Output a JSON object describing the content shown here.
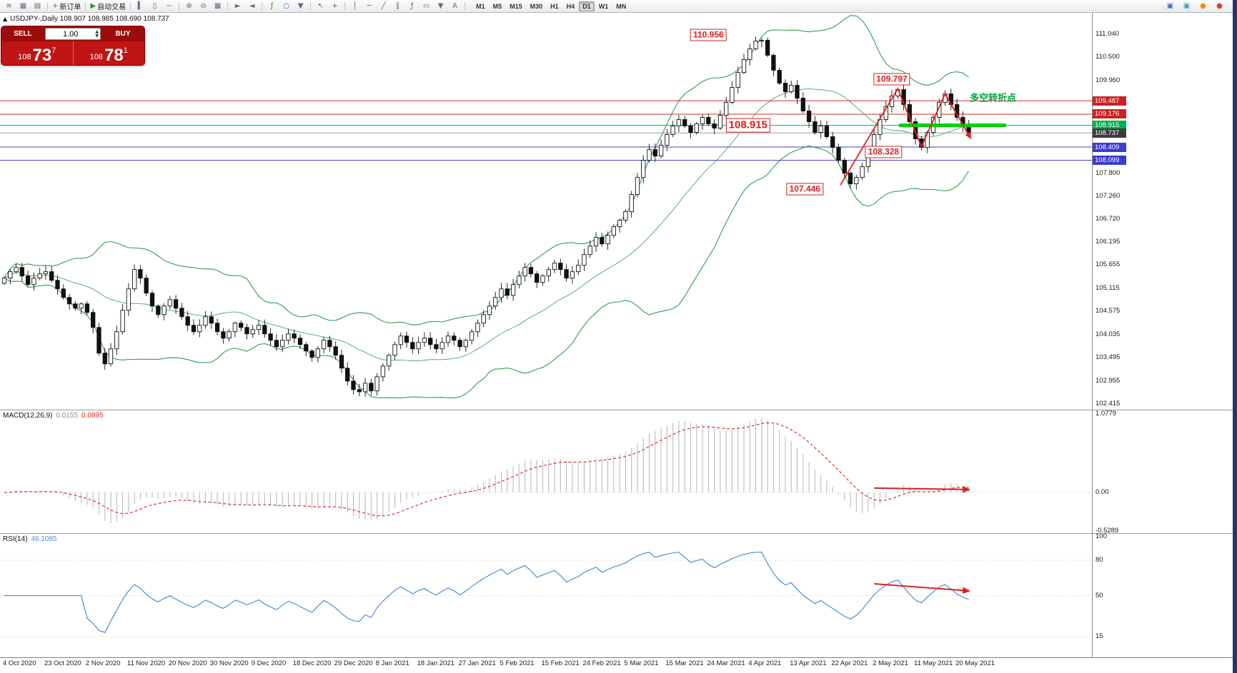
{
  "app": {
    "accent_red": "#cc2222",
    "accent_green": "#00b050",
    "accent_blue": "#3b3bd0",
    "panel_bg": "#ffffff"
  },
  "toolbar": {
    "items": [
      {
        "name": "market-watch-icon",
        "glyph": "≡"
      },
      {
        "name": "new-chart-icon",
        "glyph": "▦"
      },
      {
        "name": "profiles-icon",
        "glyph": "▤"
      },
      {
        "sep": true
      },
      {
        "name": "new-order-button",
        "glyph": "+",
        "glyph_color": "#1a9e1a",
        "label": "新订单"
      },
      {
        "sep": true
      },
      {
        "name": "autotrading-button",
        "glyph": "▶",
        "glyph_color": "#1a9e1a",
        "label": "自动交易"
      },
      {
        "sep": true
      },
      {
        "name": "bar-chart-mode-icon",
        "glyph": "▍"
      },
      {
        "name": "candlestick-mode-icon",
        "glyph": "▯"
      },
      {
        "name": "line-chart-mode-icon",
        "glyph": "~"
      },
      {
        "sep": true
      },
      {
        "name": "zoom-in-icon",
        "glyph": "⊕"
      },
      {
        "name": "zoom-out-icon",
        "glyph": "⊖"
      },
      {
        "name": "tile-windows-icon",
        "glyph": "▦"
      },
      {
        "sep": true
      },
      {
        "name": "auto-scroll-icon",
        "glyph": "►"
      },
      {
        "name": "chart-shift-icon",
        "glyph": "◄"
      },
      {
        "sep": true
      },
      {
        "name": "indicators-icon",
        "glyph": "ƒ",
        "glyph_color": "#1a9e1a"
      },
      {
        "name": "periods-icon",
        "glyph": "○"
      },
      {
        "name": "templates-icon",
        "glyph": "▼"
      },
      {
        "sep": true
      },
      {
        "name": "cursor-icon",
        "glyph": "↖"
      },
      {
        "name": "crosshair-icon",
        "glyph": "+"
      },
      {
        "sep": true
      },
      {
        "name": "vertical-line-icon",
        "glyph": "│"
      },
      {
        "name": "horizontal-line-icon",
        "glyph": "─"
      },
      {
        "name": "trendline-icon",
        "glyph": "╱"
      },
      {
        "name": "channel-icon",
        "glyph": "∥"
      },
      {
        "name": "fibonacci-icon",
        "glyph": "ƒ"
      },
      {
        "name": "shapes-icon",
        "glyph": "▭"
      },
      {
        "name": "arrows-icon",
        "glyph": "▼"
      },
      {
        "name": "text-icon",
        "glyph": "A"
      },
      {
        "sep": true
      }
    ],
    "timeframes": [
      "M1",
      "M5",
      "M15",
      "M30",
      "H1",
      "H4",
      "D1",
      "W1",
      "MN"
    ],
    "active_timeframe": "D1",
    "right_icons": [
      {
        "name": "window-icon",
        "glyph": "▣",
        "color": "#3b6fd0"
      },
      {
        "name": "chat-icon",
        "glyph": "▣",
        "color": "#35a0c8"
      },
      {
        "name": "alert-icon",
        "glyph": "●",
        "color": "#f08a20"
      },
      {
        "name": "power-icon",
        "glyph": "●",
        "color": "#d04040"
      }
    ]
  },
  "chart_header": {
    "collapse_glyph": "▲",
    "text": "USDJPY-,Daily  108.907 108.985 108.690 108.737"
  },
  "trade_panel": {
    "sell_label": "SELL",
    "buy_label": "BUY",
    "volume": "1.00",
    "sell_price_prefix": "108",
    "sell_price_big": "73",
    "sell_price_sup": "7",
    "buy_price_prefix": "108",
    "buy_price_big": "78",
    "buy_price_sup": "1"
  },
  "chart_data": {
    "type": "candlestick",
    "symbol": "USDJPY-",
    "period": "Daily",
    "ohlc_header": {
      "open": "108.907",
      "high": "108.985",
      "low": "108.690",
      "close": "108.737"
    },
    "closes": [
      105.35,
      105.5,
      105.6,
      105.4,
      105.2,
      105.35,
      105.45,
      105.5,
      105.3,
      105.1,
      104.9,
      104.75,
      104.65,
      104.75,
      104.55,
      104.2,
      103.6,
      103.35,
      103.7,
      104.1,
      104.6,
      105.1,
      105.55,
      105.35,
      105.0,
      104.7,
      104.5,
      104.7,
      104.85,
      104.65,
      104.45,
      104.25,
      104.1,
      104.25,
      104.45,
      104.3,
      104.1,
      103.95,
      104.1,
      104.3,
      104.2,
      104.05,
      104.15,
      104.25,
      104.05,
      103.9,
      103.75,
      103.9,
      104.05,
      103.95,
      103.8,
      103.65,
      103.5,
      103.7,
      103.9,
      103.75,
      103.55,
      103.25,
      102.95,
      102.75,
      102.7,
      102.9,
      102.72,
      103.05,
      103.3,
      103.55,
      103.8,
      104.0,
      103.85,
      103.7,
      103.85,
      103.95,
      103.8,
      103.7,
      103.85,
      104.0,
      103.9,
      103.75,
      103.9,
      104.1,
      104.3,
      104.5,
      104.7,
      104.9,
      105.1,
      104.95,
      105.2,
      105.4,
      105.6,
      105.45,
      105.25,
      105.4,
      105.55,
      105.7,
      105.55,
      105.35,
      105.5,
      105.65,
      105.9,
      106.1,
      106.3,
      106.15,
      106.35,
      106.55,
      106.7,
      106.9,
      107.3,
      107.7,
      108.1,
      108.35,
      108.2,
      108.45,
      108.7,
      108.9,
      109.05,
      108.9,
      108.75,
      108.95,
      109.1,
      108.95,
      108.85,
      109.15,
      109.45,
      109.8,
      110.15,
      110.45,
      110.7,
      110.88,
      110.9,
      110.55,
      110.2,
      109.9,
      109.7,
      109.85,
      109.55,
      109.25,
      109.0,
      108.75,
      108.9,
      108.65,
      108.4,
      108.1,
      107.8,
      107.55,
      107.7,
      107.95,
      108.3,
      108.7,
      109.05,
      109.35,
      109.6,
      109.75,
      109.4,
      109.0,
      108.6,
      108.4,
      108.75,
      109.1,
      109.45,
      109.65,
      109.4,
      109.1,
      108.9,
      108.74
    ],
    "overrides": {
      "128": {
        "high": 110.956
      },
      "143": {
        "low": 107.446
      },
      "151": {
        "high": 109.797
      },
      "155": {
        "low": 108.328
      },
      "159": {
        "high": 109.735
      }
    },
    "bollinger": {
      "period": 20,
      "deviation": 2,
      "color": "#2e9e50"
    },
    "hlines": [
      {
        "price": 109.487,
        "color": "#d03030",
        "tag_bg": "#cc2222"
      },
      {
        "price": 109.176,
        "color": "#d03030",
        "tag_bg": "#cc2222"
      },
      {
        "price": 108.915,
        "color": "#00b050",
        "tag_bg": "#00b050"
      },
      {
        "price": 108.737,
        "color": "#9a9a9a",
        "tag_bg": "#3c3c3c"
      },
      {
        "price": 108.409,
        "color": "#4040cc",
        "tag_bg": "#3b3bd0"
      },
      {
        "price": 108.099,
        "color": "#4040cc",
        "tag_bg": "#3b3bd0"
      }
    ],
    "thick_segment": {
      "price": 108.915,
      "i1": 151.2,
      "i2": 169.3,
      "color": "#00d000",
      "width": 5
    },
    "y_ticks": [
      111.04,
      110.5,
      109.96,
      107.8,
      107.26,
      106.72,
      106.195,
      105.655,
      105.115,
      104.575,
      104.035,
      103.495,
      102.955,
      102.415
    ],
    "x_labels": [
      "4 Oct 2020",
      "23 Oct 2020",
      "2 Nov 2020",
      "11 Nov 2020",
      "20 Nov 2020",
      "30 Nov 2020",
      "9 Dec 2020",
      "18 Dec 2020",
      "29 Dec 2020",
      "8 Jan 2021",
      "18 Jan 2021",
      "27 Jan 2021",
      "5 Feb 2021",
      "15 Feb 2021",
      "24 Feb 2021",
      "5 Mar 2021",
      "15 Mar 2021",
      "24 Mar 2021",
      "4 Apr 2021",
      "13 Apr 2021",
      "22 Apr 2021",
      "2 May 2021",
      "11 May 2021",
      "20 May 2021"
    ],
    "price_flags": [
      {
        "text": "110.956",
        "i": 119,
        "price": 111.02,
        "size": 12
      },
      {
        "text": "109.797",
        "i": 150,
        "price": 109.99,
        "size": 12
      },
      {
        "text": "108.915",
        "i": 125.7,
        "price": 108.915,
        "size": 15
      },
      {
        "text": "108.328",
        "i": 148.6,
        "price": 108.3,
        "size": 12
      },
      {
        "text": "107.446",
        "i": 135.3,
        "price": 107.42,
        "size": 12
      }
    ],
    "note": {
      "text": "多空转折点",
      "i": 167.1,
      "price": 109.57,
      "color": "#00a43c"
    },
    "zigzag": {
      "color": "#dd2020",
      "points": [
        [
          141.3,
          107.52
        ],
        [
          151,
          109.77
        ],
        [
          155,
          108.42
        ],
        [
          159,
          109.65
        ],
        [
          163.3,
          108.62
        ]
      ]
    }
  },
  "macd": {
    "title": "MACD(12,26,9)",
    "main_value": "0.0155",
    "signal_value": "0.0895",
    "fast": 12,
    "slow": 26,
    "signal": 9,
    "scale_labels": [
      "1.0779",
      "0.00",
      "-0.5289"
    ],
    "hist_color": "#b5b5b5",
    "signal_color": "#e03030",
    "arrow": {
      "i1": 147,
      "i2": 163,
      "v1": 0.06,
      "v2": 0.04,
      "color": "#dd2020"
    }
  },
  "rsi": {
    "title": "RSI(14)",
    "value": "46.1085",
    "period": 14,
    "scale_labels": [
      "100",
      "80",
      "50",
      "15"
    ],
    "scale_values": [
      100,
      80,
      50,
      15
    ],
    "level_lines": [
      80,
      50,
      15
    ],
    "line_color": "#4a8fd4",
    "arrow": {
      "i1": 147,
      "i2": 163,
      "r1": 60,
      "r2": 54,
      "color": "#dd2020"
    }
  }
}
